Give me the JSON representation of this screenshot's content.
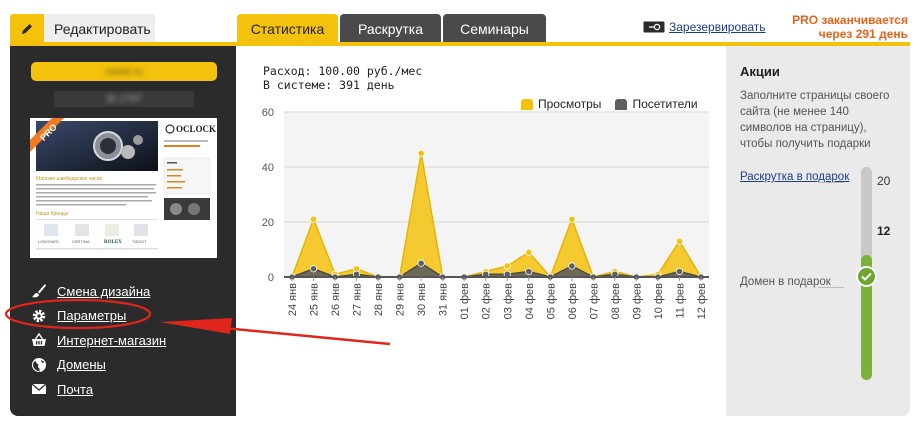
{
  "topbar": {
    "edit_label": "Редактировать",
    "tabs": [
      {
        "label": "Статистика",
        "active": true
      },
      {
        "label": "Раскрутка",
        "active": false
      },
      {
        "label": "Семинары",
        "active": false
      }
    ],
    "reserve_label": "Зарезервировать",
    "pro_expire": "PRO заканчивается через 291 день"
  },
  "sidebar": {
    "site_name": "roold.ru",
    "site_id": "ID 1797",
    "thumbnail": {
      "badge": "PRO",
      "logo": "OCLOCK",
      "heading": "Магазин швейцарских часов",
      "brands_heading": "Наши бренды",
      "brands": [
        "LONGINES",
        "CERTINA",
        "ROLEX",
        "TISSOT"
      ]
    },
    "menu": [
      {
        "label": "Смена дизайна",
        "icon": "brush-icon"
      },
      {
        "label": "Параметры",
        "icon": "gear-icon"
      },
      {
        "label": "Интернет-магазин",
        "icon": "shop-basket-icon"
      },
      {
        "label": "Домены",
        "icon": "globe-icon"
      },
      {
        "label": "Почта",
        "icon": "envelope-icon"
      }
    ]
  },
  "stats": {
    "expense_line": "Расход: 100.00 руб./мес",
    "uptime_line": "В системе: 391 день"
  },
  "chart_data": {
    "type": "area",
    "x": [
      "24 янв",
      "25 янв",
      "26 янв",
      "27 янв",
      "28 янв",
      "29 янв",
      "30 янв",
      "31 янв",
      "01 фев",
      "02 фев",
      "03 фев",
      "04 фев",
      "05 фев",
      "06 фев",
      "07 фев",
      "08 фев",
      "09 фев",
      "10 фев",
      "11 фев",
      "12 фев"
    ],
    "ylim": [
      0,
      60
    ],
    "yticks": [
      0,
      20,
      40,
      60
    ],
    "grid": true,
    "legend_position": "top-right",
    "series": [
      {
        "name": "Просмотры",
        "color": "#f4c20d",
        "values": [
          0,
          21,
          1,
          3,
          0,
          0,
          45,
          0,
          0,
          2,
          4,
          9,
          0,
          21,
          0,
          2,
          0,
          1,
          13,
          0
        ]
      },
      {
        "name": "Посетители",
        "color": "#5f5f5f",
        "values": [
          0,
          3,
          0,
          1,
          0,
          0,
          5,
          0,
          0,
          1,
          1,
          2,
          0,
          4,
          0,
          1,
          0,
          0,
          2,
          0
        ]
      }
    ]
  },
  "promo": {
    "title": "Акции",
    "description": "Заполните страницы своего сайта (не менее 140 символов на страницу), чтобы получить подарки",
    "link": "Раскрутка в подарок",
    "domain": "Домен в подарок",
    "scale_top": "20",
    "scale_current": "12",
    "progress_value": 12,
    "progress_max": 20
  },
  "colors": {
    "accent": "#f4c20d",
    "dark": "#2b2b2b",
    "link": "#1a3f8f",
    "warning": "#e8631a",
    "success": "#6fa632"
  }
}
